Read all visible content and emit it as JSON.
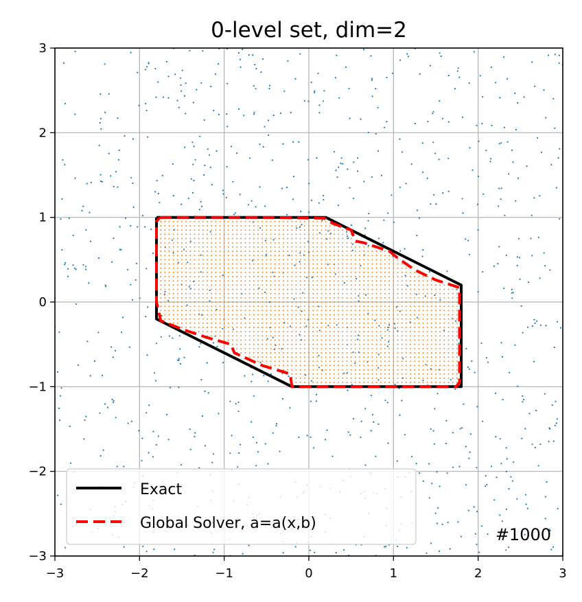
{
  "chart_data": {
    "type": "scatter",
    "title": "0-level set, dim=2",
    "xlabel": "",
    "ylabel": "",
    "xlim": [
      -3,
      3
    ],
    "ylim": [
      -3,
      3
    ],
    "xticks": [
      -3,
      -2,
      -1,
      0,
      1,
      2,
      3
    ],
    "yticks": [
      -3,
      -2,
      -1,
      0,
      1,
      2,
      3
    ],
    "xtick_labels": [
      "−3",
      "−2",
      "−1",
      "0",
      "1",
      "2",
      "3"
    ],
    "ytick_labels": [
      "−3",
      "−2",
      "−1",
      "0",
      "1",
      "2",
      "3"
    ],
    "grid": true,
    "legend_position": "lower-left",
    "annotation": "#1000",
    "series": [
      {
        "name": "Exact",
        "kind": "line",
        "color": "#000000",
        "points": [
          [
            -1.8,
            1.0
          ],
          [
            0.2,
            1.0
          ],
          [
            1.8,
            0.2
          ],
          [
            1.8,
            -1.0
          ],
          [
            -0.2,
            -1.0
          ],
          [
            -1.8,
            -0.2
          ],
          [
            -1.8,
            1.0
          ]
        ]
      },
      {
        "name": "Global Solver, a=a(x,b)",
        "kind": "dashed-line",
        "color": "#ff0000",
        "points": [
          [
            -1.76,
            1.0
          ],
          [
            -0.55,
            1.0
          ],
          [
            0.18,
            0.99
          ],
          [
            0.28,
            0.93
          ],
          [
            0.5,
            0.85
          ],
          [
            0.55,
            0.72
          ],
          [
            0.65,
            0.7
          ],
          [
            0.95,
            0.6
          ],
          [
            1.05,
            0.52
          ],
          [
            1.25,
            0.38
          ],
          [
            1.5,
            0.26
          ],
          [
            1.78,
            0.17
          ],
          [
            1.78,
            -0.95
          ],
          [
            1.74,
            -1.0
          ],
          [
            -0.2,
            -1.0
          ],
          [
            -0.22,
            -0.85
          ],
          [
            -0.55,
            -0.75
          ],
          [
            -0.88,
            -0.6
          ],
          [
            -0.92,
            -0.5
          ],
          [
            -1.2,
            -0.42
          ],
          [
            -1.5,
            -0.32
          ],
          [
            -1.75,
            -0.22
          ],
          [
            -1.8,
            0.0
          ],
          [
            -1.8,
            0.95
          ],
          [
            -1.76,
            1.0
          ]
        ]
      },
      {
        "name": "",
        "kind": "sample-grid",
        "color": "#ff7f0e",
        "description_inside": "dense grid of sample points inside the level set",
        "grid_step": 0.05
      },
      {
        "name": "",
        "kind": "random-samples",
        "color": "#1f77b4",
        "count": 1000,
        "domain": [
          [
            -3,
            3
          ],
          [
            -3,
            3
          ]
        ]
      }
    ]
  }
}
